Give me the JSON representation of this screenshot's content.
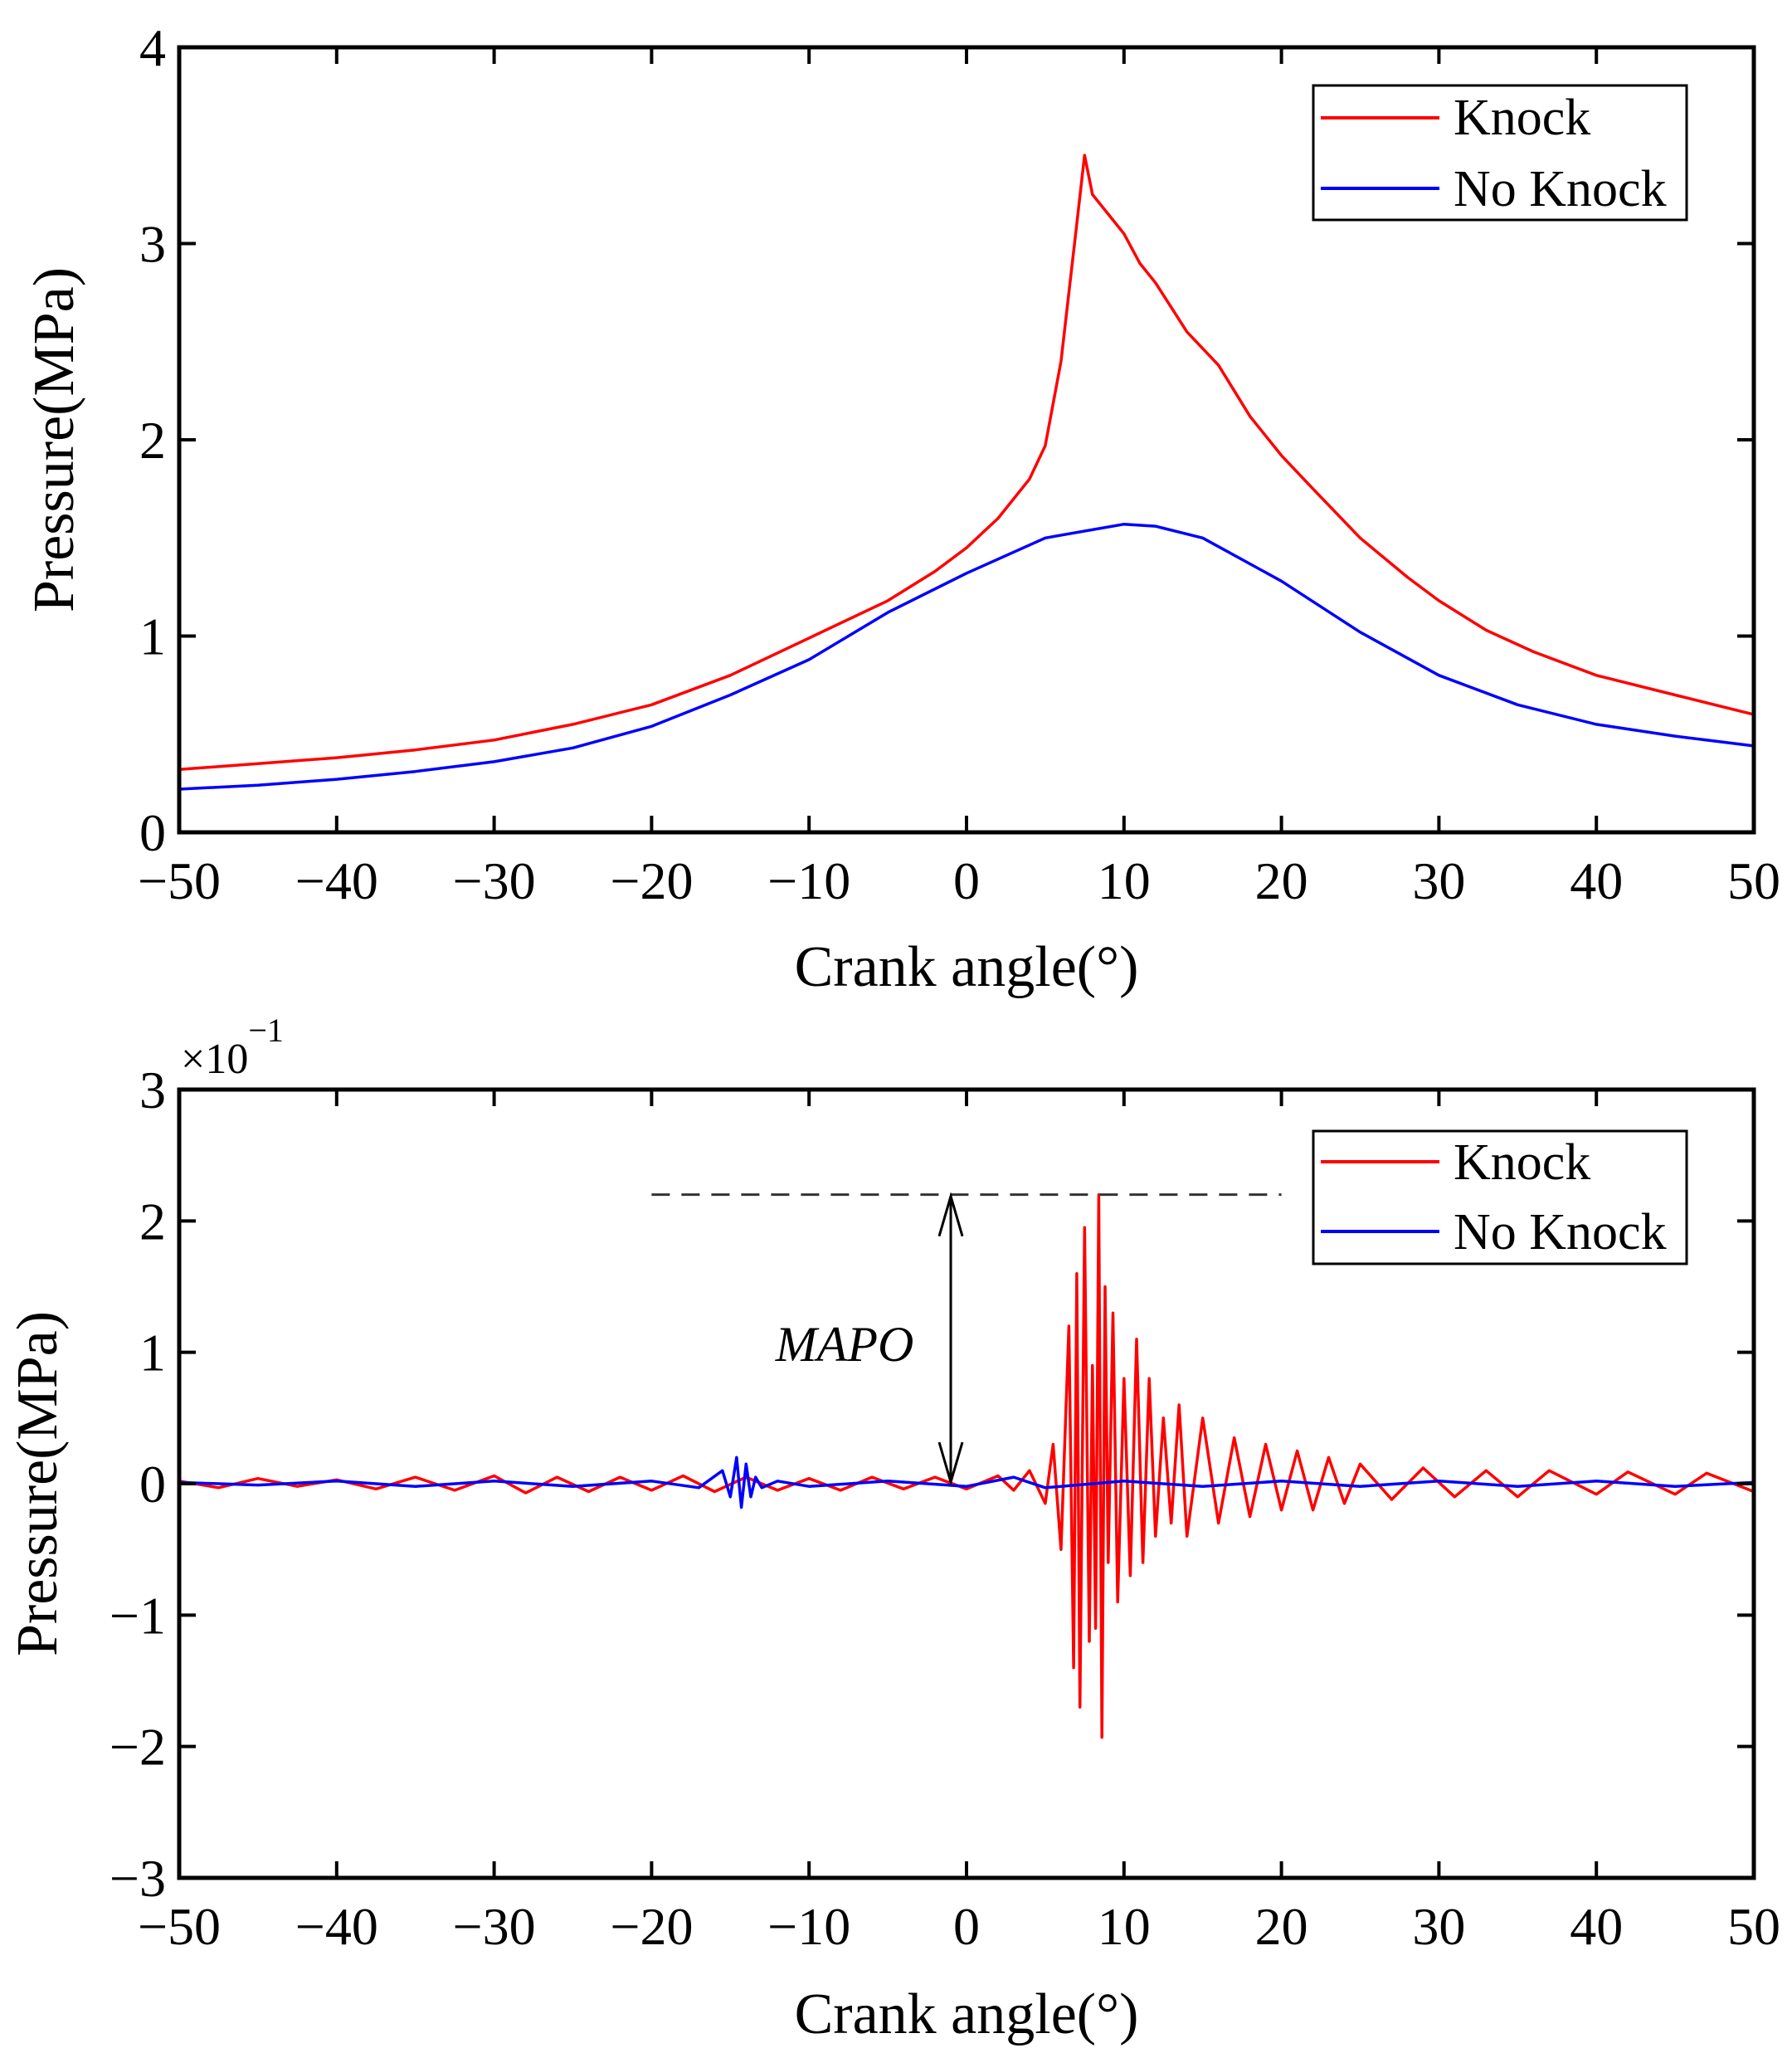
{
  "chart_data": [
    {
      "type": "line",
      "xlabel": "Crank angle(°)",
      "ylabel": "Pressure(MPa)",
      "xlim": [
        -50,
        50
      ],
      "ylim": [
        0,
        4
      ],
      "xticks": [
        -50,
        -40,
        -30,
        -20,
        -10,
        0,
        10,
        20,
        30,
        40,
        50
      ],
      "yticks": [
        0,
        1,
        2,
        3,
        4
      ],
      "xtick_labels": [
        "−50",
        "−40",
        "−30",
        "−20",
        "−10",
        "0",
        "10",
        "20",
        "30",
        "40",
        "50"
      ],
      "ytick_labels": [
        "0",
        "1",
        "2",
        "3",
        "4"
      ],
      "legend_position": "top-right",
      "grid": false,
      "series": [
        {
          "name": "Knock",
          "color": "#ff0000",
          "x": [
            -50,
            -45,
            -40,
            -35,
            -30,
            -25,
            -20,
            -15,
            -10,
            -5,
            -2,
            0,
            2,
            4,
            5,
            6,
            7,
            7.5,
            8,
            9,
            10,
            11,
            12,
            14,
            16,
            18,
            20,
            22,
            25,
            28,
            30,
            33,
            36,
            40,
            45,
            50
          ],
          "y": [
            0.32,
            0.35,
            0.38,
            0.42,
            0.47,
            0.55,
            0.65,
            0.8,
            0.99,
            1.18,
            1.33,
            1.45,
            1.6,
            1.8,
            1.97,
            2.4,
            3.1,
            3.45,
            3.25,
            3.15,
            3.05,
            2.9,
            2.8,
            2.55,
            2.38,
            2.12,
            1.92,
            1.75,
            1.5,
            1.3,
            1.18,
            1.03,
            0.92,
            0.8,
            0.7,
            0.6
          ]
        },
        {
          "name": "No Knock",
          "color": "#0000ff",
          "x": [
            -50,
            -45,
            -40,
            -35,
            -30,
            -25,
            -20,
            -15,
            -10,
            -5,
            0,
            5,
            10,
            12,
            15,
            20,
            25,
            30,
            35,
            40,
            45,
            50
          ],
          "y": [
            0.22,
            0.24,
            0.27,
            0.31,
            0.36,
            0.43,
            0.54,
            0.7,
            0.88,
            1.12,
            1.32,
            1.5,
            1.57,
            1.56,
            1.5,
            1.28,
            1.02,
            0.8,
            0.65,
            0.55,
            0.49,
            0.44
          ]
        }
      ]
    },
    {
      "type": "line",
      "xlabel": "Crank angle(°)",
      "ylabel": "Pressure(MPa)",
      "xlim": [
        -50,
        50
      ],
      "ylim": [
        -3,
        3
      ],
      "xticks": [
        -50,
        -40,
        -30,
        -20,
        -10,
        0,
        10,
        20,
        30,
        40,
        50
      ],
      "yticks": [
        -3,
        -2,
        -1,
        0,
        1,
        2,
        3
      ],
      "xtick_labels": [
        "−50",
        "−40",
        "−30",
        "−20",
        "−10",
        "0",
        "10",
        "20",
        "30",
        "40",
        "50"
      ],
      "ytick_labels": [
        "−3",
        "−2",
        "−1",
        "0",
        "1",
        "2",
        "3"
      ],
      "y_multiplier": {
        "base": "×10",
        "exponent": "−1"
      },
      "legend_position": "top-right",
      "grid": false,
      "annotation": {
        "text": "MAPO",
        "x": -1,
        "y_from": 0,
        "y_to": 2.2,
        "dashed_line_y": 2.2,
        "dashed_line_x": [
          -20,
          20
        ]
      },
      "series": [
        {
          "name": "Knock",
          "color": "#ff0000",
          "x": [
            -50,
            -47.5,
            -45,
            -42.5,
            -40,
            -37.5,
            -35,
            -32.5,
            -30,
            -28,
            -26,
            -24,
            -22,
            -20,
            -18,
            -16,
            -14,
            -12,
            -10,
            -8,
            -6,
            -4,
            -2,
            0,
            2,
            3,
            4,
            5,
            5.5,
            6,
            6.5,
            6.8,
            7,
            7.2,
            7.5,
            7.8,
            8,
            8.2,
            8.4,
            8.6,
            8.8,
            9,
            9.3,
            9.6,
            10,
            10.4,
            10.8,
            11.2,
            11.6,
            12,
            12.5,
            13,
            13.5,
            14,
            15,
            16,
            17,
            18,
            19,
            20,
            21,
            22,
            23,
            24,
            25,
            27,
            29,
            31,
            33,
            35,
            37,
            40,
            42,
            45,
            47,
            50
          ],
          "y": [
            0.02,
            -0.03,
            0.04,
            -0.02,
            0.03,
            -0.04,
            0.05,
            -0.05,
            0.06,
            -0.07,
            0.05,
            -0.06,
            0.05,
            -0.05,
            0.06,
            -0.06,
            0.05,
            -0.05,
            0.04,
            -0.05,
            0.05,
            -0.04,
            0.05,
            -0.04,
            0.06,
            -0.05,
            0.1,
            -0.15,
            0.3,
            -0.5,
            1.2,
            -1.4,
            1.6,
            -1.7,
            1.95,
            -1.2,
            0.9,
            -1.1,
            2.2,
            -1.93,
            1.5,
            -0.6,
            1.3,
            -0.9,
            0.8,
            -0.7,
            1.1,
            -0.6,
            0.8,
            -0.4,
            0.5,
            -0.3,
            0.6,
            -0.4,
            0.5,
            -0.3,
            0.35,
            -0.25,
            0.3,
            -0.2,
            0.25,
            -0.2,
            0.2,
            -0.15,
            0.15,
            -0.12,
            0.12,
            -0.1,
            0.1,
            -0.1,
            0.1,
            -0.08,
            0.09,
            -0.08,
            0.08,
            -0.06
          ]
        },
        {
          "name": "No Knock",
          "color": "#0000ff",
          "x": [
            -50,
            -45,
            -40,
            -35,
            -30,
            -25,
            -20,
            -17,
            -15.5,
            -15,
            -14.6,
            -14.3,
            -14,
            -13.7,
            -13.4,
            -13,
            -12,
            -10,
            -5,
            0,
            3,
            5,
            10,
            15,
            20,
            25,
            30,
            35,
            40,
            45,
            50
          ],
          "y": [
            0.01,
            -0.01,
            0.02,
            -0.02,
            0.02,
            -0.02,
            0.02,
            -0.03,
            0.1,
            -0.1,
            0.2,
            -0.18,
            0.15,
            -0.1,
            0.05,
            -0.03,
            0.02,
            -0.02,
            0.02,
            -0.02,
            0.05,
            -0.03,
            0.02,
            -0.02,
            0.02,
            -0.02,
            0.02,
            -0.02,
            0.02,
            -0.02,
            0.01
          ]
        }
      ]
    }
  ]
}
